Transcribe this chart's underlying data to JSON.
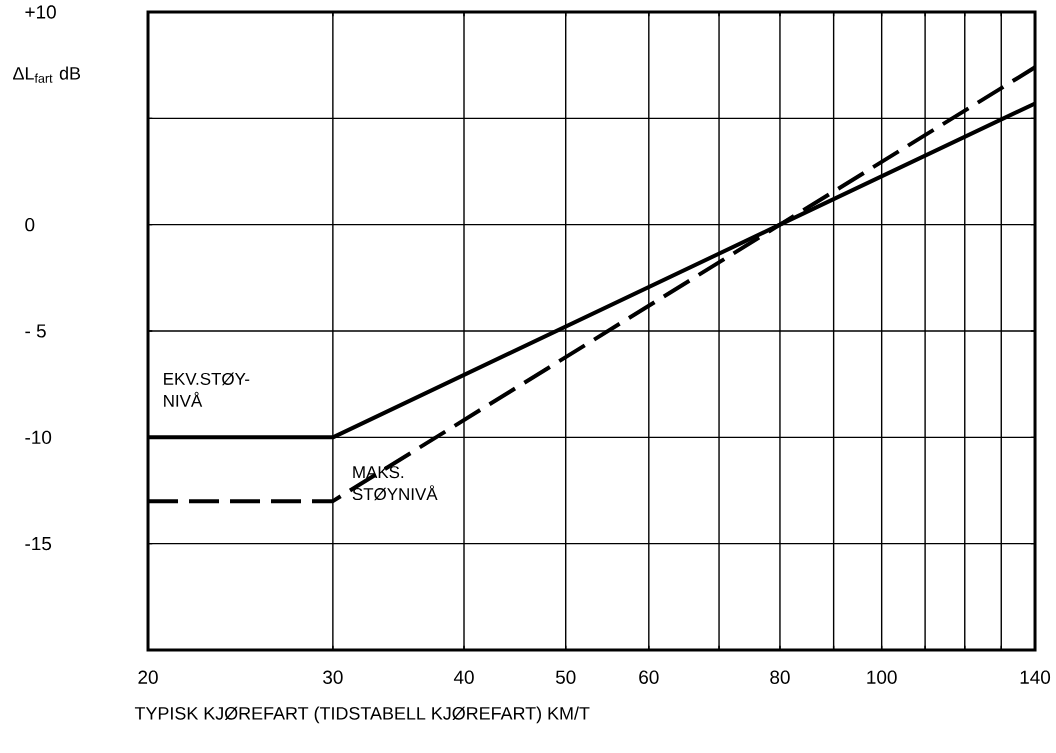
{
  "chart_data": {
    "type": "line",
    "xlabel": "TYPISK KJØREFART   (TIDSTABELL KJØREFART)     KM/T",
    "ylabel": "ΔL$_{fart}$ dB",
    "log": "x",
    "grid": true,
    "legend": false,
    "marker": "none",
    "xlim": [
      20,
      140
    ],
    "ylim": [
      -20,
      10
    ],
    "xticks": [
      20,
      30,
      40,
      50,
      60,
      {
        "value": 70,
        "label": null
      },
      80,
      {
        "value": 90,
        "label": null
      },
      100,
      {
        "value": 110,
        "label": null
      },
      {
        "value": 120,
        "label": null
      },
      {
        "value": 130,
        "label": null
      },
      140
    ],
    "yticks": [
      {
        "value": -20,
        "label": null
      },
      {
        "value": -15,
        "label": "-15"
      },
      {
        "value": -10,
        "label": "-10"
      },
      {
        "value": -5,
        "label": "- 5"
      },
      0,
      {
        "value": 5,
        "label": null
      },
      {
        "value": 10,
        "label": "+10"
      }
    ],
    "series": [
      {
        "name": "EKV.STØY-NIVÅ",
        "color": "#000000",
        "line_style": "solid",
        "x": [
          20,
          30,
          80,
          140
        ],
        "values": [
          -10,
          -10,
          0,
          5.7
        ]
      },
      {
        "name": "MAKS. STØYNIVÅ",
        "color": "#000000",
        "line_style": "dashed",
        "x": [
          20,
          30,
          80,
          140
        ],
        "values": [
          -13,
          -13,
          0,
          7.4
        ]
      }
    ]
  }
}
